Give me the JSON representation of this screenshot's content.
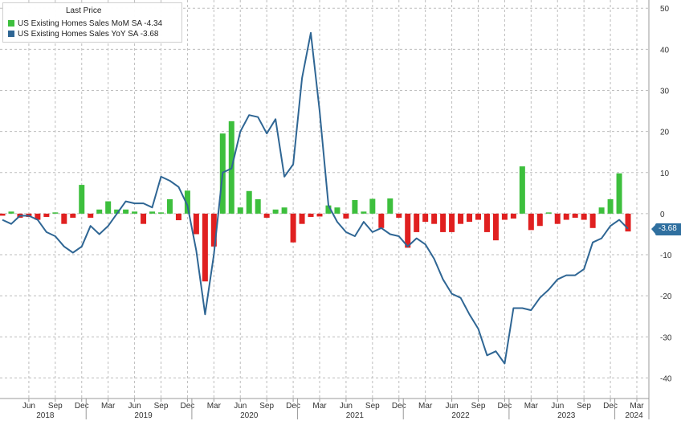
{
  "chart_data": {
    "type": "bar+line",
    "legend": {
      "title": "Last Price",
      "placement": "top-left"
    },
    "series": [
      {
        "name": "US Existing Homes Sales MoM SA",
        "last_value": "-4.34",
        "type": "bar",
        "color": "#3dbf3d",
        "negative_color": "#e02020",
        "values": [
          -0.5,
          0.5,
          -1,
          -0.8,
          -1.5,
          -0.8,
          0.3,
          -2.5,
          -1,
          7,
          -1,
          1,
          3,
          1,
          1,
          0.5,
          -2.5,
          0.5,
          0.3,
          3.5,
          -1.6,
          5.6,
          -5,
          -16.5,
          -8,
          19.5,
          22.5,
          1.5,
          5.5,
          3.5,
          -1,
          1,
          1.5,
          -7,
          -2.5,
          -0.8,
          -0.7,
          2,
          1.5,
          -1.2,
          3.3,
          0.5,
          3.6,
          -3.5,
          3.7,
          -1,
          -8.3,
          -4.5,
          -2,
          -2.5,
          -4.5,
          -4.5,
          -2.5,
          -2,
          -1.5,
          -4.5,
          -6.5,
          -1.5,
          -1.2,
          11.5,
          -4,
          -3,
          0.3,
          -2.5,
          -1.5,
          -1,
          -1.5,
          -3.5,
          1.5,
          3.5,
          9.8,
          -4.34
        ]
      },
      {
        "name": "US Existing Homes Sales YoY SA",
        "last_value": "-3.68",
        "type": "line",
        "color": "#2f6694",
        "values": [
          -1.5,
          -2.5,
          -0.5,
          -0.5,
          -1.5,
          -4.5,
          -5.5,
          -8,
          -9.5,
          -8,
          -3,
          -5,
          -3,
          0,
          3,
          2.5,
          2.5,
          1.5,
          9,
          8,
          6.5,
          2,
          -9,
          -24.5,
          -10,
          10,
          11,
          20,
          24,
          23.5,
          19.5,
          23,
          9,
          12,
          33,
          44,
          25,
          2,
          -2,
          -4.5,
          -5.5,
          -2,
          -4.5,
          -3.5,
          -5,
          -5.5,
          -8,
          -6,
          -7.5,
          -11,
          -16,
          -19.5,
          -20.5,
          -24.5,
          -28,
          -34.5,
          -33.5,
          -36.5,
          -23,
          -23,
          -23.5,
          -20.5,
          -18.5,
          -16,
          -15,
          -15,
          -13.5,
          -7,
          -6,
          -3,
          -1.5,
          -3.68
        ]
      }
    ],
    "x_start": "2018-03",
    "x_end": "2024-03",
    "x_ticks": [
      {
        "label": "Jun",
        "date": "2018-06"
      },
      {
        "label": "Sep",
        "date": "2018-09"
      },
      {
        "label": "Dec",
        "date": "2018-12"
      },
      {
        "label": "Mar",
        "date": "2019-03"
      },
      {
        "label": "Jun",
        "date": "2019-06"
      },
      {
        "label": "Sep",
        "date": "2019-09"
      },
      {
        "label": "Dec",
        "date": "2019-12"
      },
      {
        "label": "Mar",
        "date": "2020-03"
      },
      {
        "label": "Jun",
        "date": "2020-06"
      },
      {
        "label": "Sep",
        "date": "2020-09"
      },
      {
        "label": "Dec",
        "date": "2020-12"
      },
      {
        "label": "Mar",
        "date": "2021-03"
      },
      {
        "label": "Jun",
        "date": "2021-06"
      },
      {
        "label": "Sep",
        "date": "2021-09"
      },
      {
        "label": "Dec",
        "date": "2021-12"
      },
      {
        "label": "Mar",
        "date": "2022-03"
      },
      {
        "label": "Jun",
        "date": "2022-06"
      },
      {
        "label": "Sep",
        "date": "2022-09"
      },
      {
        "label": "Dec",
        "date": "2022-12"
      },
      {
        "label": "Mar",
        "date": "2023-03"
      },
      {
        "label": "Jun",
        "date": "2023-06"
      },
      {
        "label": "Sep",
        "date": "2023-09"
      },
      {
        "label": "Dec",
        "date": "2023-12"
      },
      {
        "label": "Mar",
        "date": "2024-03"
      }
    ],
    "years": [
      "2018",
      "2019",
      "2020",
      "2021",
      "2022",
      "2023",
      "2024"
    ],
    "y_ticks": [
      50,
      40,
      30,
      20,
      10,
      0,
      -10,
      -20,
      -30,
      -40
    ],
    "ylim": [
      -45,
      52
    ],
    "y_axis_side": "right",
    "grid": true,
    "last_value_label": "-3.68"
  }
}
